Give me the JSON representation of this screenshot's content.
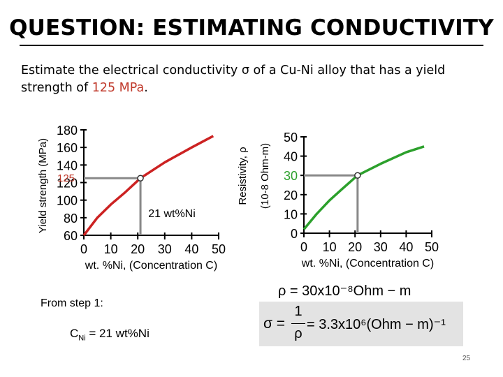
{
  "slide": {
    "title": "QUESTION: ESTIMATING CONDUCTIVITY",
    "prompt_before": "Estimate the electrical conductivity ",
    "prompt_sigma": "σ",
    "prompt_middle": " of a Cu-Ni alloy that has a yield strength of ",
    "prompt_value": "125 MPa",
    "prompt_end": ".",
    "from_step": "From step 1:",
    "cni_symbol": "C",
    "cni_subscript": "Ni",
    "cni_value": " = 21 wt%Ni",
    "rho_eq": "ρ = 30x10⁻⁸Ohm − m",
    "sigma_lhs": "σ = ",
    "sigma_num": "1",
    "sigma_den": "ρ",
    "sigma_rhs": " = 3.3x10⁶(Ohm − m)⁻¹",
    "page_number": "25"
  },
  "colors": {
    "left_curve": "#cc2222",
    "right_curve": "#2ca02c",
    "guide_line": "#888888",
    "accent_text": "#c0392b",
    "formula_bg": "#e3e3e3"
  },
  "chart_data": [
    {
      "type": "line",
      "ylabel": "Yield strength (MPa)",
      "xlabel": "wt. %Ni, (Concentration C)",
      "xlim": [
        0,
        50
      ],
      "ylim": [
        60,
        180
      ],
      "xticks": [
        "0",
        "10",
        "20",
        "30",
        "40",
        "50"
      ],
      "yticks": [
        "180",
        "160",
        "140",
        "120",
        "100",
        "80",
        "60"
      ],
      "series": [
        {
          "x": [
            0,
            5,
            10,
            15,
            21,
            30,
            40,
            48
          ],
          "y": [
            60,
            80,
            95,
            108,
            125,
            143,
            160,
            173
          ]
        }
      ],
      "highlight": {
        "x": 21,
        "y": 125,
        "y_label": "125"
      },
      "annotation": "21 wt%Ni"
    },
    {
      "type": "line",
      "ylabel": "Resistivity, ρ (10-8 Ohm-m)",
      "xlabel": "wt. %Ni, (Concentration C)",
      "xlim": [
        0,
        50
      ],
      "ylim": [
        0,
        50
      ],
      "xticks": [
        "0",
        "10",
        "20",
        "30",
        "40",
        "50"
      ],
      "yticks": [
        "50",
        "40",
        "30",
        "20",
        "10",
        "0"
      ],
      "series": [
        {
          "x": [
            0,
            5,
            10,
            15,
            21,
            30,
            40,
            47
          ],
          "y": [
            2,
            10,
            17,
            23,
            30,
            36,
            42,
            45
          ]
        }
      ],
      "highlight": {
        "x": 21,
        "y": 30,
        "y_label": "30"
      }
    }
  ]
}
